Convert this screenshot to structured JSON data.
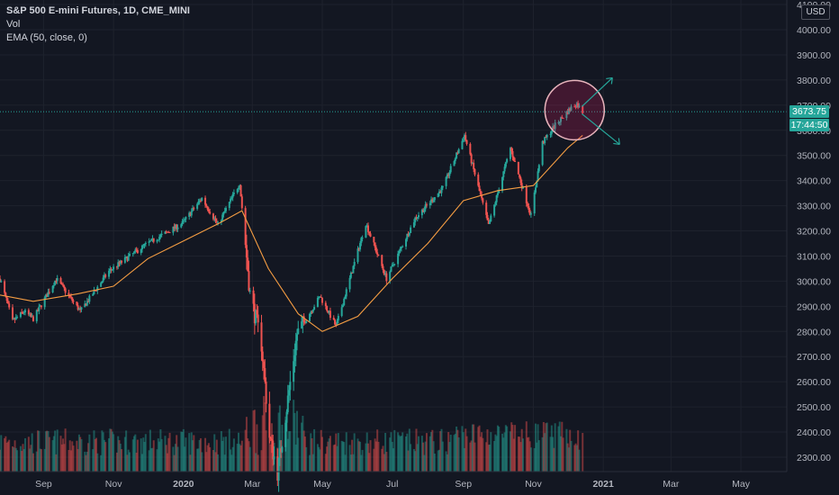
{
  "legend": {
    "title": "S&P 500 E-mini Futures, 1D, CME_MINI",
    "vol": "Vol",
    "ema": "EMA (50, close, 0)"
  },
  "currency": "USD",
  "last_price": "3673.75",
  "countdown": "17:44:50",
  "colors": {
    "up": "#26a69a",
    "down": "#ef5350",
    "ema": "#f59d43",
    "accent": "#26a69a",
    "circle": "#e8b4bc"
  },
  "chart_data": {
    "type": "candlestick",
    "y_axis": {
      "ticks": [
        2300,
        2400,
        2500,
        2600,
        2700,
        2800,
        2900,
        3000,
        3100,
        3200,
        3300,
        3400,
        3500,
        3600,
        3700,
        3800,
        3900,
        4000,
        4100
      ],
      "tick_labels": [
        "2300.00",
        "2400.00",
        "2500.00",
        "2600.00",
        "2700.00",
        "2800.00",
        "2900.00",
        "3000.00",
        "3100.00",
        "3200.00",
        "3300.00",
        "3400.00",
        "3500.00",
        "3600.00",
        "3700.00",
        "3800.00",
        "3900.00",
        "4000.00",
        "4100.00"
      ],
      "range": [
        2260,
        4130
      ]
    },
    "x_axis": {
      "labels": [
        "Sep",
        "Nov",
        "2020",
        "Mar",
        "May",
        "Jul",
        "Sep",
        "Nov",
        "2021",
        "Mar",
        "May"
      ],
      "dates": [
        "2019-09-01",
        "2019-11-01",
        "2020-01-01",
        "2020-03-01",
        "2020-05-01",
        "2020-07-01",
        "2020-09-01",
        "2020-11-01",
        "2021-01-01",
        "2021-03-01",
        "2021-05-01"
      ],
      "range": [
        "2019-07-25",
        "2021-06-10"
      ]
    },
    "price_path": [
      {
        "date": "2019-07-25",
        "close": 3010
      },
      {
        "date": "2019-08-05",
        "close": 2840
      },
      {
        "date": "2019-08-15",
        "close": 2880
      },
      {
        "date": "2019-08-23",
        "close": 2850
      },
      {
        "date": "2019-09-12",
        "close": 3010
      },
      {
        "date": "2019-10-03",
        "close": 2880
      },
      {
        "date": "2019-10-28",
        "close": 3040
      },
      {
        "date": "2019-11-29",
        "close": 3145
      },
      {
        "date": "2019-12-31",
        "close": 3230
      },
      {
        "date": "2020-01-17",
        "close": 3330
      },
      {
        "date": "2020-01-31",
        "close": 3225
      },
      {
        "date": "2020-02-19",
        "close": 3390
      },
      {
        "date": "2020-02-28",
        "close": 2950
      },
      {
        "date": "2020-03-09",
        "close": 2750
      },
      {
        "date": "2020-03-16",
        "close": 2380
      },
      {
        "date": "2020-03-23",
        "close": 2240
      },
      {
        "date": "2020-04-09",
        "close": 2790
      },
      {
        "date": "2020-04-29",
        "close": 2940
      },
      {
        "date": "2020-05-13",
        "close": 2820
      },
      {
        "date": "2020-06-08",
        "close": 3230
      },
      {
        "date": "2020-06-26",
        "close": 3010
      },
      {
        "date": "2020-07-21",
        "close": 3250
      },
      {
        "date": "2020-08-14",
        "close": 3370
      },
      {
        "date": "2020-09-02",
        "close": 3580
      },
      {
        "date": "2020-09-23",
        "close": 3220
      },
      {
        "date": "2020-10-12",
        "close": 3530
      },
      {
        "date": "2020-10-30",
        "close": 3260
      },
      {
        "date": "2020-11-09",
        "close": 3550
      },
      {
        "date": "2020-11-20",
        "close": 3620
      },
      {
        "date": "2020-12-04",
        "close": 3690
      },
      {
        "date": "2020-12-09",
        "close": 3705
      },
      {
        "date": "2020-12-14",
        "close": 3673.75
      }
    ],
    "ema_path": [
      {
        "date": "2019-07-25",
        "value": 2945
      },
      {
        "date": "2019-08-23",
        "value": 2920
      },
      {
        "date": "2019-10-01",
        "value": 2950
      },
      {
        "date": "2019-11-01",
        "value": 2980
      },
      {
        "date": "2019-12-01",
        "value": 3090
      },
      {
        "date": "2020-01-01",
        "value": 3160
      },
      {
        "date": "2020-02-01",
        "value": 3230
      },
      {
        "date": "2020-02-21",
        "value": 3280
      },
      {
        "date": "2020-03-15",
        "value": 3050
      },
      {
        "date": "2020-04-10",
        "value": 2870
      },
      {
        "date": "2020-05-01",
        "value": 2800
      },
      {
        "date": "2020-06-01",
        "value": 2860
      },
      {
        "date": "2020-07-01",
        "value": 3010
      },
      {
        "date": "2020-08-01",
        "value": 3150
      },
      {
        "date": "2020-09-01",
        "value": 3320
      },
      {
        "date": "2020-10-01",
        "value": 3360
      },
      {
        "date": "2020-11-01",
        "value": 3380
      },
      {
        "date": "2020-12-01",
        "value": 3530
      },
      {
        "date": "2020-12-14",
        "value": 3580
      }
    ],
    "last_price": 3673.75
  }
}
